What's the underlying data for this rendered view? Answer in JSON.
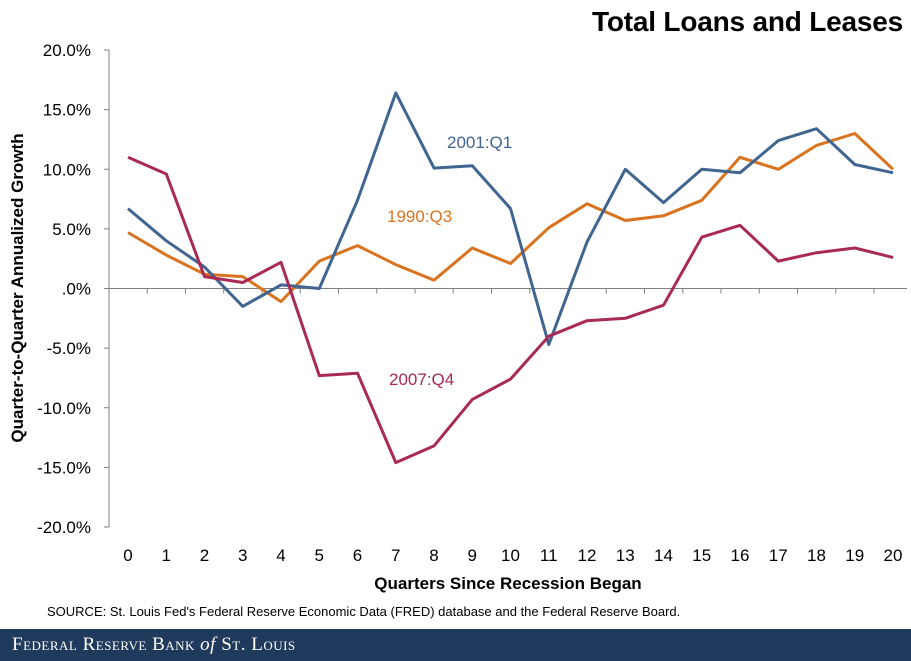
{
  "chart_data": {
    "type": "line",
    "title": "Total Loans and Leases",
    "xlabel": "Quarters  Since Recession Began",
    "ylabel": "Quarter-to-Quarter  Annualized Growth",
    "x": [
      0,
      1,
      2,
      3,
      4,
      5,
      6,
      7,
      8,
      9,
      10,
      11,
      12,
      13,
      14,
      15,
      16,
      17,
      18,
      19,
      20
    ],
    "xlim": [
      0,
      20
    ],
    "ylim": [
      -20,
      20
    ],
    "yticks": [
      20,
      15,
      10,
      5,
      0,
      -5,
      -10,
      -15,
      -20
    ],
    "ytick_labels": [
      "20.0%",
      "15.0%",
      "10.0%",
      "5.0%",
      ".0%",
      "-5.0%",
      "-10.0%",
      "-15.0%",
      "-20.0%"
    ],
    "grid": false,
    "series": [
      {
        "name": "1990:Q3",
        "color": "#d9731f",
        "values": [
          4.7,
          2.8,
          1.2,
          1.0,
          -1.1,
          2.3,
          3.6,
          2.0,
          0.7,
          3.4,
          2.1,
          5.1,
          7.1,
          5.7,
          6.1,
          7.4,
          11.0,
          10.0,
          12.0,
          13.0,
          10.0
        ]
      },
      {
        "name": "2001:Q1",
        "color": "#3f6590",
        "values": [
          6.7,
          4.0,
          1.8,
          -1.5,
          0.3,
          0.0,
          7.4,
          16.4,
          10.1,
          10.3,
          6.7,
          -4.7,
          3.9,
          10.0,
          7.2,
          10.0,
          9.7,
          12.4,
          13.4,
          10.4,
          9.7
        ]
      },
      {
        "name": "2007:Q4",
        "color": "#a82a55",
        "values": [
          11.0,
          9.6,
          1.0,
          0.5,
          2.2,
          -7.3,
          -7.1,
          -14.6,
          -13.2,
          -9.3,
          -7.6,
          -4.0,
          -2.7,
          -2.5,
          -1.4,
          4.3,
          5.3,
          2.3,
          3.0,
          3.4,
          2.6
        ]
      }
    ]
  },
  "source": "SOURCE: St. Louis Fed's Federal Reserve Economic Data (FRED) database and the Federal Reserve Board.",
  "footer": {
    "part1": "Federal Reserve Bank ",
    "part2": "of",
    "part3": " St. Louis"
  }
}
